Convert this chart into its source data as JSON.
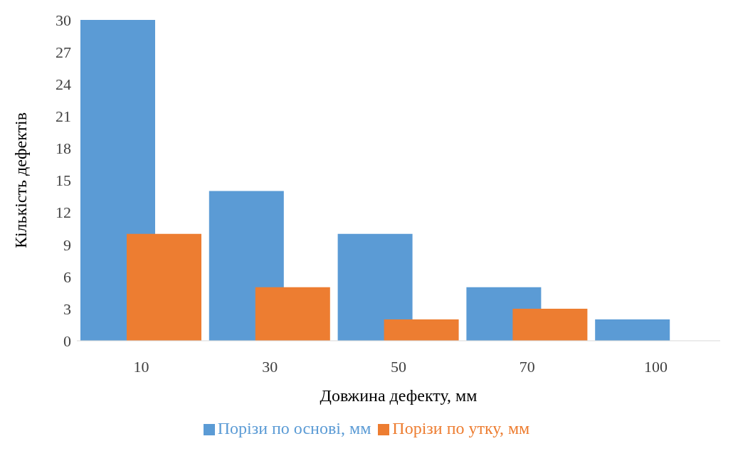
{
  "chart_data": {
    "type": "bar",
    "xlabel": "Довжина дефекту, мм",
    "ylabel": "Кількість дефектів",
    "categories": [
      "10",
      "30",
      "50",
      "70",
      "100"
    ],
    "series": [
      {
        "name": "Порізи по основі, мм",
        "color": "#5b9bd5",
        "values": [
          30,
          14,
          10,
          5,
          2
        ]
      },
      {
        "name": "Порізи по утку, мм",
        "color": "#ed7d31",
        "values": [
          10,
          5,
          2,
          3,
          0
        ]
      }
    ],
    "ylim": [
      0,
      30
    ],
    "yticks": [
      0,
      3,
      6,
      9,
      12,
      15,
      18,
      21,
      24,
      27,
      30
    ],
    "grid": false,
    "legend": "bottom"
  }
}
